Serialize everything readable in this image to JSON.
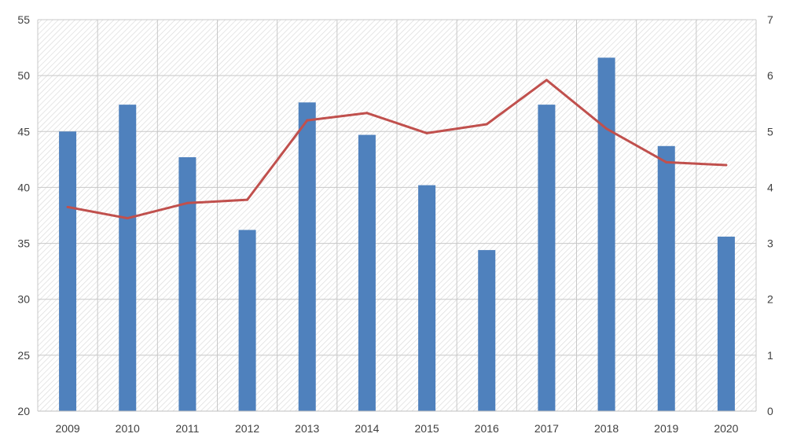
{
  "chart_data": {
    "type": "bar",
    "categories": [
      "2009",
      "2010",
      "2011",
      "2012",
      "2013",
      "2014",
      "2015",
      "2016",
      "2017",
      "2018",
      "2019",
      "2020"
    ],
    "series": [
      {
        "type": "bar",
        "axis": "left",
        "color": "#4f81bd",
        "values": [
          45.0,
          47.4,
          42.7,
          36.2,
          47.6,
          44.7,
          40.2,
          34.4,
          47.4,
          51.6,
          43.7,
          35.6
        ]
      },
      {
        "type": "line",
        "axis": "right",
        "color": "#c0504d",
        "values": [
          3.65,
          3.45,
          3.72,
          3.78,
          5.2,
          5.33,
          4.97,
          5.13,
          5.92,
          5.05,
          4.45,
          4.4
        ]
      }
    ],
    "y_left": {
      "min": 20,
      "max": 55,
      "ticks": [
        "20",
        "25",
        "30",
        "35",
        "40",
        "45",
        "50",
        "55"
      ]
    },
    "y_right": {
      "min": 0,
      "max": 7,
      "ticks": [
        "0",
        "1",
        "2",
        "3",
        "4",
        "5",
        "6",
        "7"
      ]
    },
    "xlabel": "",
    "ylabel": "",
    "title": "",
    "grid": true,
    "legend": "none",
    "plot_background": "hatched light gray"
  }
}
